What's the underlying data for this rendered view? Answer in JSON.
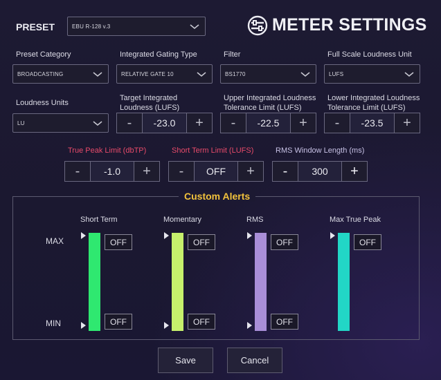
{
  "header": {
    "preset_label": "PRESET",
    "preset_value": "EBU R-128 v.3",
    "title": "METER SETTINGS"
  },
  "row1": {
    "preset_category": {
      "label": "Preset Category",
      "value": "BROADCASTING"
    },
    "integrated_gating_type": {
      "label": "Integrated Gating Type",
      "value": "RELATIVE GATE 10"
    },
    "filter": {
      "label": "Filter",
      "value": "BS1770"
    },
    "full_scale_loudness_unit": {
      "label": "Full Scale Loudness Unit",
      "value": "LUFS"
    }
  },
  "row2": {
    "loudness_units": {
      "label": "Loudness Units",
      "value": "LU"
    },
    "target_integrated": {
      "label_line1": "Target Integrated",
      "label_line2": "Loudness (LUFS)",
      "value": "-23.0"
    },
    "upper_tolerance": {
      "label_line1": "Upper Integrated Loudness",
      "label_line2": "Tolerance Limit (LUFS)",
      "value": "-22.5"
    },
    "lower_tolerance": {
      "label_line1": "Lower Integrated Loudness",
      "label_line2": "Tolerance Limit (LUFS)",
      "value": "-23.5"
    }
  },
  "row3": {
    "true_peak": {
      "label": "True Peak Limit (dbTP)",
      "value": "-1.0"
    },
    "short_term_limit": {
      "label": "Short Term Limit (LUFS)",
      "value": "OFF"
    },
    "rms_window": {
      "label": "RMS Window Length (ms)",
      "value": "300"
    }
  },
  "stepper_symbols": {
    "minus": "-",
    "plus": "+"
  },
  "alerts": {
    "title": "Custom Alerts",
    "max_label": "MAX",
    "min_label": "MIN",
    "meters": [
      {
        "name": "Short Term",
        "max": "OFF",
        "min": "OFF",
        "color": "#2fe870"
      },
      {
        "name": "Momentary",
        "max": "OFF",
        "min": "OFF",
        "color": "#c6f06c"
      },
      {
        "name": "RMS",
        "max": "OFF",
        "min": "OFF",
        "color": "#a98ed8"
      },
      {
        "name": "Max True Peak",
        "max": "OFF",
        "color": "#22d6c6"
      }
    ]
  },
  "footer": {
    "save": "Save",
    "cancel": "Cancel"
  },
  "colors": {
    "accent_gold": "#f2c23c",
    "alert_red": "#e84a6a"
  }
}
